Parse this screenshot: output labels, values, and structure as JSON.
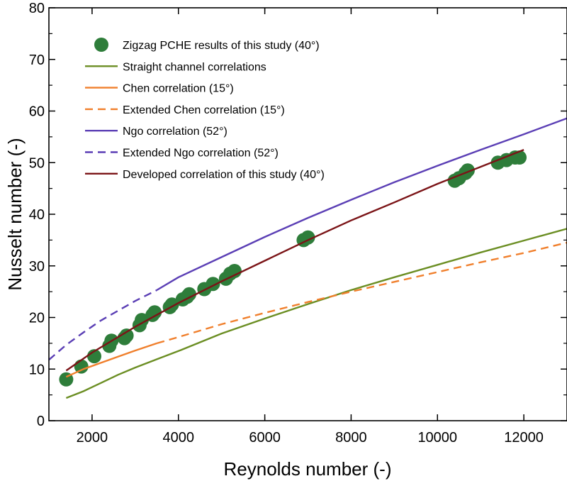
{
  "chart_data": {
    "type": "scatter",
    "xlabel": "Reynolds number (-)",
    "ylabel": "Nusselt number (-)",
    "xlim": [
      1000,
      13000
    ],
    "ylim": [
      0,
      80
    ],
    "xticks": [
      2000,
      4000,
      6000,
      8000,
      10000,
      12000
    ],
    "yticks": [
      0,
      10,
      20,
      30,
      40,
      50,
      60,
      70,
      80
    ],
    "grid": false,
    "legend_position": "top-left",
    "series": [
      {
        "name": "Zigzag PCHE results of this study (40°)",
        "kind": "scatter",
        "color": "#2e7d3a",
        "x": [
          1400,
          1750,
          2050,
          2400,
          2450,
          2750,
          2800,
          3100,
          3150,
          3400,
          3450,
          3800,
          3850,
          4100,
          4200,
          4250,
          4600,
          4800,
          5100,
          5200,
          5300,
          6900,
          7000,
          10400,
          10500,
          10650,
          10700,
          11400,
          11600,
          11800,
          11900
        ],
        "y": [
          8,
          10.5,
          12.5,
          14.5,
          15.5,
          16,
          16.5,
          18.5,
          19.5,
          20.5,
          21,
          22,
          22.5,
          23.5,
          24,
          24.5,
          25.5,
          26.5,
          27.5,
          28.5,
          29,
          35,
          35.5,
          46.5,
          47,
          48,
          48.5,
          50,
          50.5,
          51,
          51
        ]
      },
      {
        "name": "Straight channel correlations",
        "kind": "line",
        "style": "solid",
        "color": "#6b8e23",
        "x": [
          1400,
          1800,
          2200,
          2600,
          3000,
          3500,
          4000,
          5000,
          6000,
          7000,
          8000,
          9000,
          10000,
          11000,
          12000,
          13000
        ],
        "y": [
          4.4,
          5.7,
          7.3,
          8.9,
          10.3,
          11.9,
          13.5,
          16.9,
          19.8,
          22.6,
          25.3,
          27.8,
          30.2,
          32.6,
          34.9,
          37.2
        ]
      },
      {
        "name": "Chen correlation (15°)",
        "kind": "line",
        "style": "solid",
        "color": "#f07f2c",
        "x": [
          1400,
          1800,
          2200,
          2600,
          3000,
          3500
        ],
        "y": [
          8.5,
          10.0,
          11.2,
          12.4,
          13.6,
          15.0
        ]
      },
      {
        "name": "Extended Chen correlation (15°)",
        "kind": "line",
        "style": "dashed",
        "color": "#f07f2c",
        "x": [
          3500,
          4000,
          5000,
          6000,
          7000,
          8000,
          9000,
          10000,
          11000,
          12000,
          13000
        ],
        "y": [
          15.0,
          16.2,
          18.7,
          20.9,
          23.0,
          25.0,
          26.9,
          28.8,
          30.7,
          32.5,
          34.5
        ]
      },
      {
        "name": "Ngo correlation (52°)",
        "kind": "line",
        "style": "solid",
        "color": "#5b3fb5",
        "x": [
          3500,
          4000,
          5000,
          6000,
          7000,
          8000,
          9000,
          10000,
          11000,
          12000,
          13000
        ],
        "y": [
          25.3,
          27.8,
          31.7,
          35.6,
          39.3,
          42.8,
          46.2,
          49.4,
          52.5,
          55.5,
          58.6
        ]
      },
      {
        "name": "Extended Ngo correlation (52°)",
        "kind": "line",
        "style": "dashed",
        "color": "#5b3fb5",
        "x": [
          1000,
          1400,
          1800,
          2200,
          2600,
          3000,
          3500
        ],
        "y": [
          11.8,
          14.7,
          17.1,
          19.4,
          21.3,
          23.2,
          25.3
        ]
      },
      {
        "name": "Developed correlation of this study (40°)",
        "kind": "line",
        "style": "solid",
        "color": "#7b1417",
        "x": [
          1400,
          2000,
          3000,
          4000,
          5000,
          6000,
          7000,
          8000,
          9000,
          10000,
          11000,
          12000
        ],
        "y": [
          9.7,
          13.2,
          18.2,
          22.8,
          27.0,
          31.0,
          35.0,
          38.8,
          42.3,
          45.9,
          49.2,
          52.5
        ]
      }
    ]
  }
}
